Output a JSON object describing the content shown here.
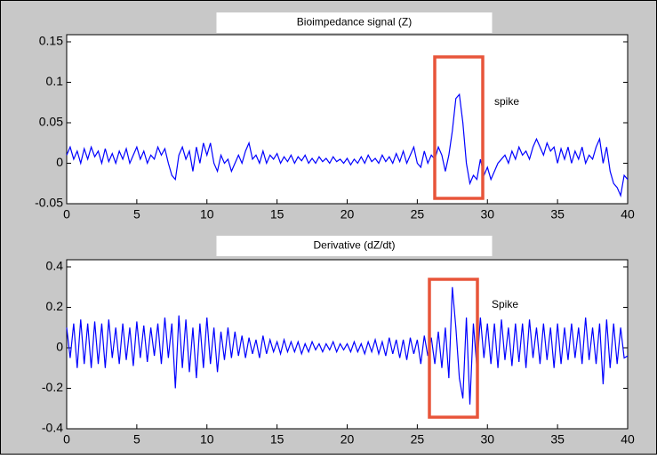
{
  "chart_data": [
    {
      "type": "line",
      "title": "Bioimpedance signal (Z)",
      "annotation": "spike",
      "color": "#0000ff",
      "x": [
        0,
        0.25,
        0.5,
        0.75,
        1,
        1.25,
        1.5,
        1.75,
        2,
        2.25,
        2.5,
        2.75,
        3,
        3.25,
        3.5,
        3.75,
        4,
        4.25,
        4.5,
        4.75,
        5,
        5.25,
        5.5,
        5.75,
        6,
        6.25,
        6.5,
        6.75,
        7,
        7.25,
        7.5,
        7.75,
        8,
        8.25,
        8.5,
        8.75,
        9,
        9.25,
        9.5,
        9.75,
        10,
        10.25,
        10.5,
        10.75,
        11,
        11.25,
        11.5,
        11.75,
        12,
        12.25,
        12.5,
        12.75,
        13,
        13.25,
        13.5,
        13.75,
        14,
        14.25,
        14.5,
        14.75,
        15,
        15.25,
        15.5,
        15.75,
        16,
        16.25,
        16.5,
        16.75,
        17,
        17.25,
        17.5,
        17.75,
        18,
        18.25,
        18.5,
        18.75,
        19,
        19.25,
        19.5,
        19.75,
        20,
        20.25,
        20.5,
        20.75,
        21,
        21.25,
        21.5,
        21.75,
        22,
        22.25,
        22.5,
        22.75,
        23,
        23.25,
        23.5,
        23.75,
        24,
        24.25,
        24.5,
        24.75,
        25,
        25.25,
        25.5,
        25.75,
        26,
        26.25,
        26.5,
        26.75,
        27,
        27.25,
        27.5,
        27.75,
        28,
        28.25,
        28.5,
        28.75,
        29,
        29.25,
        29.5,
        29.75,
        30,
        30.25,
        30.5,
        30.75,
        31,
        31.25,
        31.5,
        31.75,
        32,
        32.25,
        32.5,
        32.75,
        33,
        33.25,
        33.5,
        33.75,
        34,
        34.25,
        34.5,
        34.75,
        35,
        35.25,
        35.5,
        35.75,
        36,
        36.25,
        36.5,
        36.75,
        37,
        37.25,
        37.5,
        37.75,
        38,
        38.25,
        38.5,
        38.75,
        39,
        39.25,
        39.5,
        39.75,
        40
      ],
      "values": [
        0.01,
        0.02,
        0.005,
        0.015,
        0.0,
        0.018,
        0.005,
        0.02,
        0.008,
        0.015,
        0.0,
        0.018,
        0.002,
        0.012,
        0.0,
        0.015,
        0.005,
        0.018,
        0.0,
        0.01,
        0.02,
        0.005,
        0.015,
        0.0,
        0.01,
        0.005,
        0.02,
        0.01,
        0.018,
        0.0,
        -0.015,
        -0.02,
        0.01,
        0.02,
        0.005,
        0.015,
        -0.01,
        0.02,
        0.0,
        0.025,
        0.01,
        0.025,
        0.0,
        -0.01,
        0.01,
        0.0,
        0.005,
        -0.01,
        0.0,
        0.01,
        0.0,
        0.015,
        0.025,
        0.005,
        0.01,
        0.0,
        0.015,
        0.0,
        0.01,
        0.005,
        0.012,
        0.0,
        0.008,
        0.002,
        0.01,
        0.0,
        0.008,
        0.003,
        0.01,
        0.0,
        0.006,
        0.0,
        0.008,
        0.002,
        0.006,
        0.0,
        0.008,
        0.002,
        0.005,
        0.0,
        0.006,
        -0.002,
        0.005,
        0.0,
        0.008,
        0.0,
        0.01,
        0.002,
        0.006,
        0.0,
        0.01,
        0.002,
        0.008,
        0.0,
        0.012,
        0.002,
        0.015,
        0.0,
        0.01,
        0.02,
        0.0,
        -0.005,
        0.015,
        0.0,
        0.01,
        0.005,
        0.02,
        0.01,
        -0.01,
        0.01,
        0.04,
        0.08,
        0.085,
        0.05,
        0.0,
        -0.025,
        -0.015,
        -0.02,
        0.005,
        -0.015,
        -0.005,
        -0.02,
        -0.01,
        0.0,
        0.005,
        0.01,
        0.0,
        0.015,
        0.005,
        0.02,
        0.01,
        0.015,
        0.005,
        0.02,
        0.03,
        0.02,
        0.01,
        0.025,
        0.015,
        0.02,
        0.0,
        0.018,
        0.005,
        0.02,
        0.0,
        0.015,
        0.005,
        0.02,
        0.0,
        0.01,
        0.005,
        0.02,
        0.03,
        0.0,
        0.02,
        -0.01,
        -0.025,
        -0.03,
        -0.04,
        -0.015,
        -0.02
      ],
      "xlim": [
        0,
        40
      ],
      "xticks": [
        0,
        5,
        10,
        15,
        20,
        25,
        30,
        35,
        40
      ],
      "ylim": [
        -0.05,
        0.15
      ],
      "yticks": [
        -0.05,
        0,
        0.05,
        0.1,
        0.15
      ]
    },
    {
      "type": "line",
      "title": "Derivative (dZ/dt)",
      "annotation": "Spike",
      "color": "#0000ff",
      "x": [
        0,
        0.25,
        0.5,
        0.75,
        1,
        1.25,
        1.5,
        1.75,
        2,
        2.25,
        2.5,
        2.75,
        3,
        3.25,
        3.5,
        3.75,
        4,
        4.25,
        4.5,
        4.75,
        5,
        5.25,
        5.5,
        5.75,
        6,
        6.25,
        6.5,
        6.75,
        7,
        7.25,
        7.5,
        7.75,
        8,
        8.25,
        8.5,
        8.75,
        9,
        9.25,
        9.5,
        9.75,
        10,
        10.25,
        10.5,
        10.75,
        11,
        11.25,
        11.5,
        11.75,
        12,
        12.25,
        12.5,
        12.75,
        13,
        13.25,
        13.5,
        13.75,
        14,
        14.25,
        14.5,
        14.75,
        15,
        15.25,
        15.5,
        15.75,
        16,
        16.25,
        16.5,
        16.75,
        17,
        17.25,
        17.5,
        17.75,
        18,
        18.25,
        18.5,
        18.75,
        19,
        19.25,
        19.5,
        19.75,
        20,
        20.25,
        20.5,
        20.75,
        21,
        21.25,
        21.5,
        21.75,
        22,
        22.25,
        22.5,
        22.75,
        23,
        23.25,
        23.5,
        23.75,
        24,
        24.25,
        24.5,
        24.75,
        25,
        25.25,
        25.5,
        25.75,
        26,
        26.25,
        26.5,
        26.75,
        27,
        27.25,
        27.5,
        27.75,
        28,
        28.25,
        28.5,
        28.75,
        29,
        29.25,
        29.5,
        29.75,
        30,
        30.25,
        30.5,
        30.75,
        31,
        31.25,
        31.5,
        31.75,
        32,
        32.25,
        32.5,
        32.75,
        33,
        33.25,
        33.5,
        33.75,
        34,
        34.25,
        34.5,
        34.75,
        35,
        35.25,
        35.5,
        35.75,
        36,
        36.25,
        36.5,
        36.75,
        37,
        37.25,
        37.5,
        37.75,
        38,
        38.25,
        38.5,
        38.75,
        39,
        39.25,
        39.5,
        39.75,
        40
      ],
      "values": [
        0.1,
        -0.05,
        0.12,
        -0.1,
        0.14,
        -0.08,
        0.12,
        -0.1,
        0.13,
        -0.08,
        0.12,
        -0.1,
        0.14,
        -0.05,
        0.1,
        -0.08,
        0.12,
        -0.06,
        0.1,
        -0.09,
        0.13,
        -0.05,
        0.11,
        -0.07,
        0.1,
        -0.04,
        0.12,
        -0.08,
        0.15,
        -0.05,
        0.12,
        -0.2,
        0.16,
        -0.1,
        0.14,
        -0.12,
        0.1,
        -0.15,
        0.12,
        -0.1,
        0.15,
        -0.08,
        0.1,
        -0.12,
        0.08,
        -0.06,
        0.1,
        -0.05,
        0.08,
        -0.04,
        0.06,
        -0.05,
        0.05,
        -0.03,
        0.04,
        -0.05,
        0.06,
        -0.03,
        0.04,
        -0.02,
        0.03,
        -0.03,
        0.04,
        -0.02,
        0.03,
        -0.02,
        0.03,
        -0.03,
        0.02,
        -0.02,
        0.03,
        -0.01,
        0.02,
        -0.02,
        0.02,
        -0.01,
        0.03,
        -0.02,
        0.02,
        -0.01,
        0.02,
        -0.02,
        0.03,
        -0.02,
        0.02,
        -0.03,
        0.03,
        -0.02,
        0.04,
        -0.03,
        0.03,
        -0.04,
        0.05,
        -0.03,
        0.04,
        -0.05,
        0.04,
        -0.06,
        0.05,
        -0.03,
        0.04,
        -0.08,
        0.06,
        -0.04,
        0.05,
        -0.08,
        0.08,
        -0.1,
        0.1,
        -0.15,
        0.3,
        0.1,
        -0.15,
        -0.25,
        0.15,
        -0.28,
        0.12,
        -0.1,
        0.15,
        -0.05,
        0.12,
        -0.08,
        0.12,
        -0.1,
        0.14,
        -0.06,
        0.1,
        -0.09,
        0.12,
        -0.07,
        0.12,
        -0.1,
        0.14,
        -0.05,
        0.1,
        -0.08,
        0.12,
        -0.06,
        0.1,
        -0.1,
        0.12,
        -0.08,
        0.1,
        -0.06,
        0.12,
        -0.05,
        0.1,
        -0.08,
        0.15,
        -0.06,
        0.1,
        -0.08,
        0.12,
        -0.18,
        0.14,
        -0.1,
        0.12,
        -0.08,
        0.1,
        -0.05,
        -0.04
      ],
      "xlim": [
        0,
        40
      ],
      "xticks": [
        0,
        5,
        10,
        15,
        20,
        25,
        30,
        35,
        40
      ],
      "ylim": [
        -0.4,
        0.4
      ],
      "yticks": [
        -0.4,
        -0.2,
        0,
        0.2,
        0.4
      ]
    }
  ]
}
